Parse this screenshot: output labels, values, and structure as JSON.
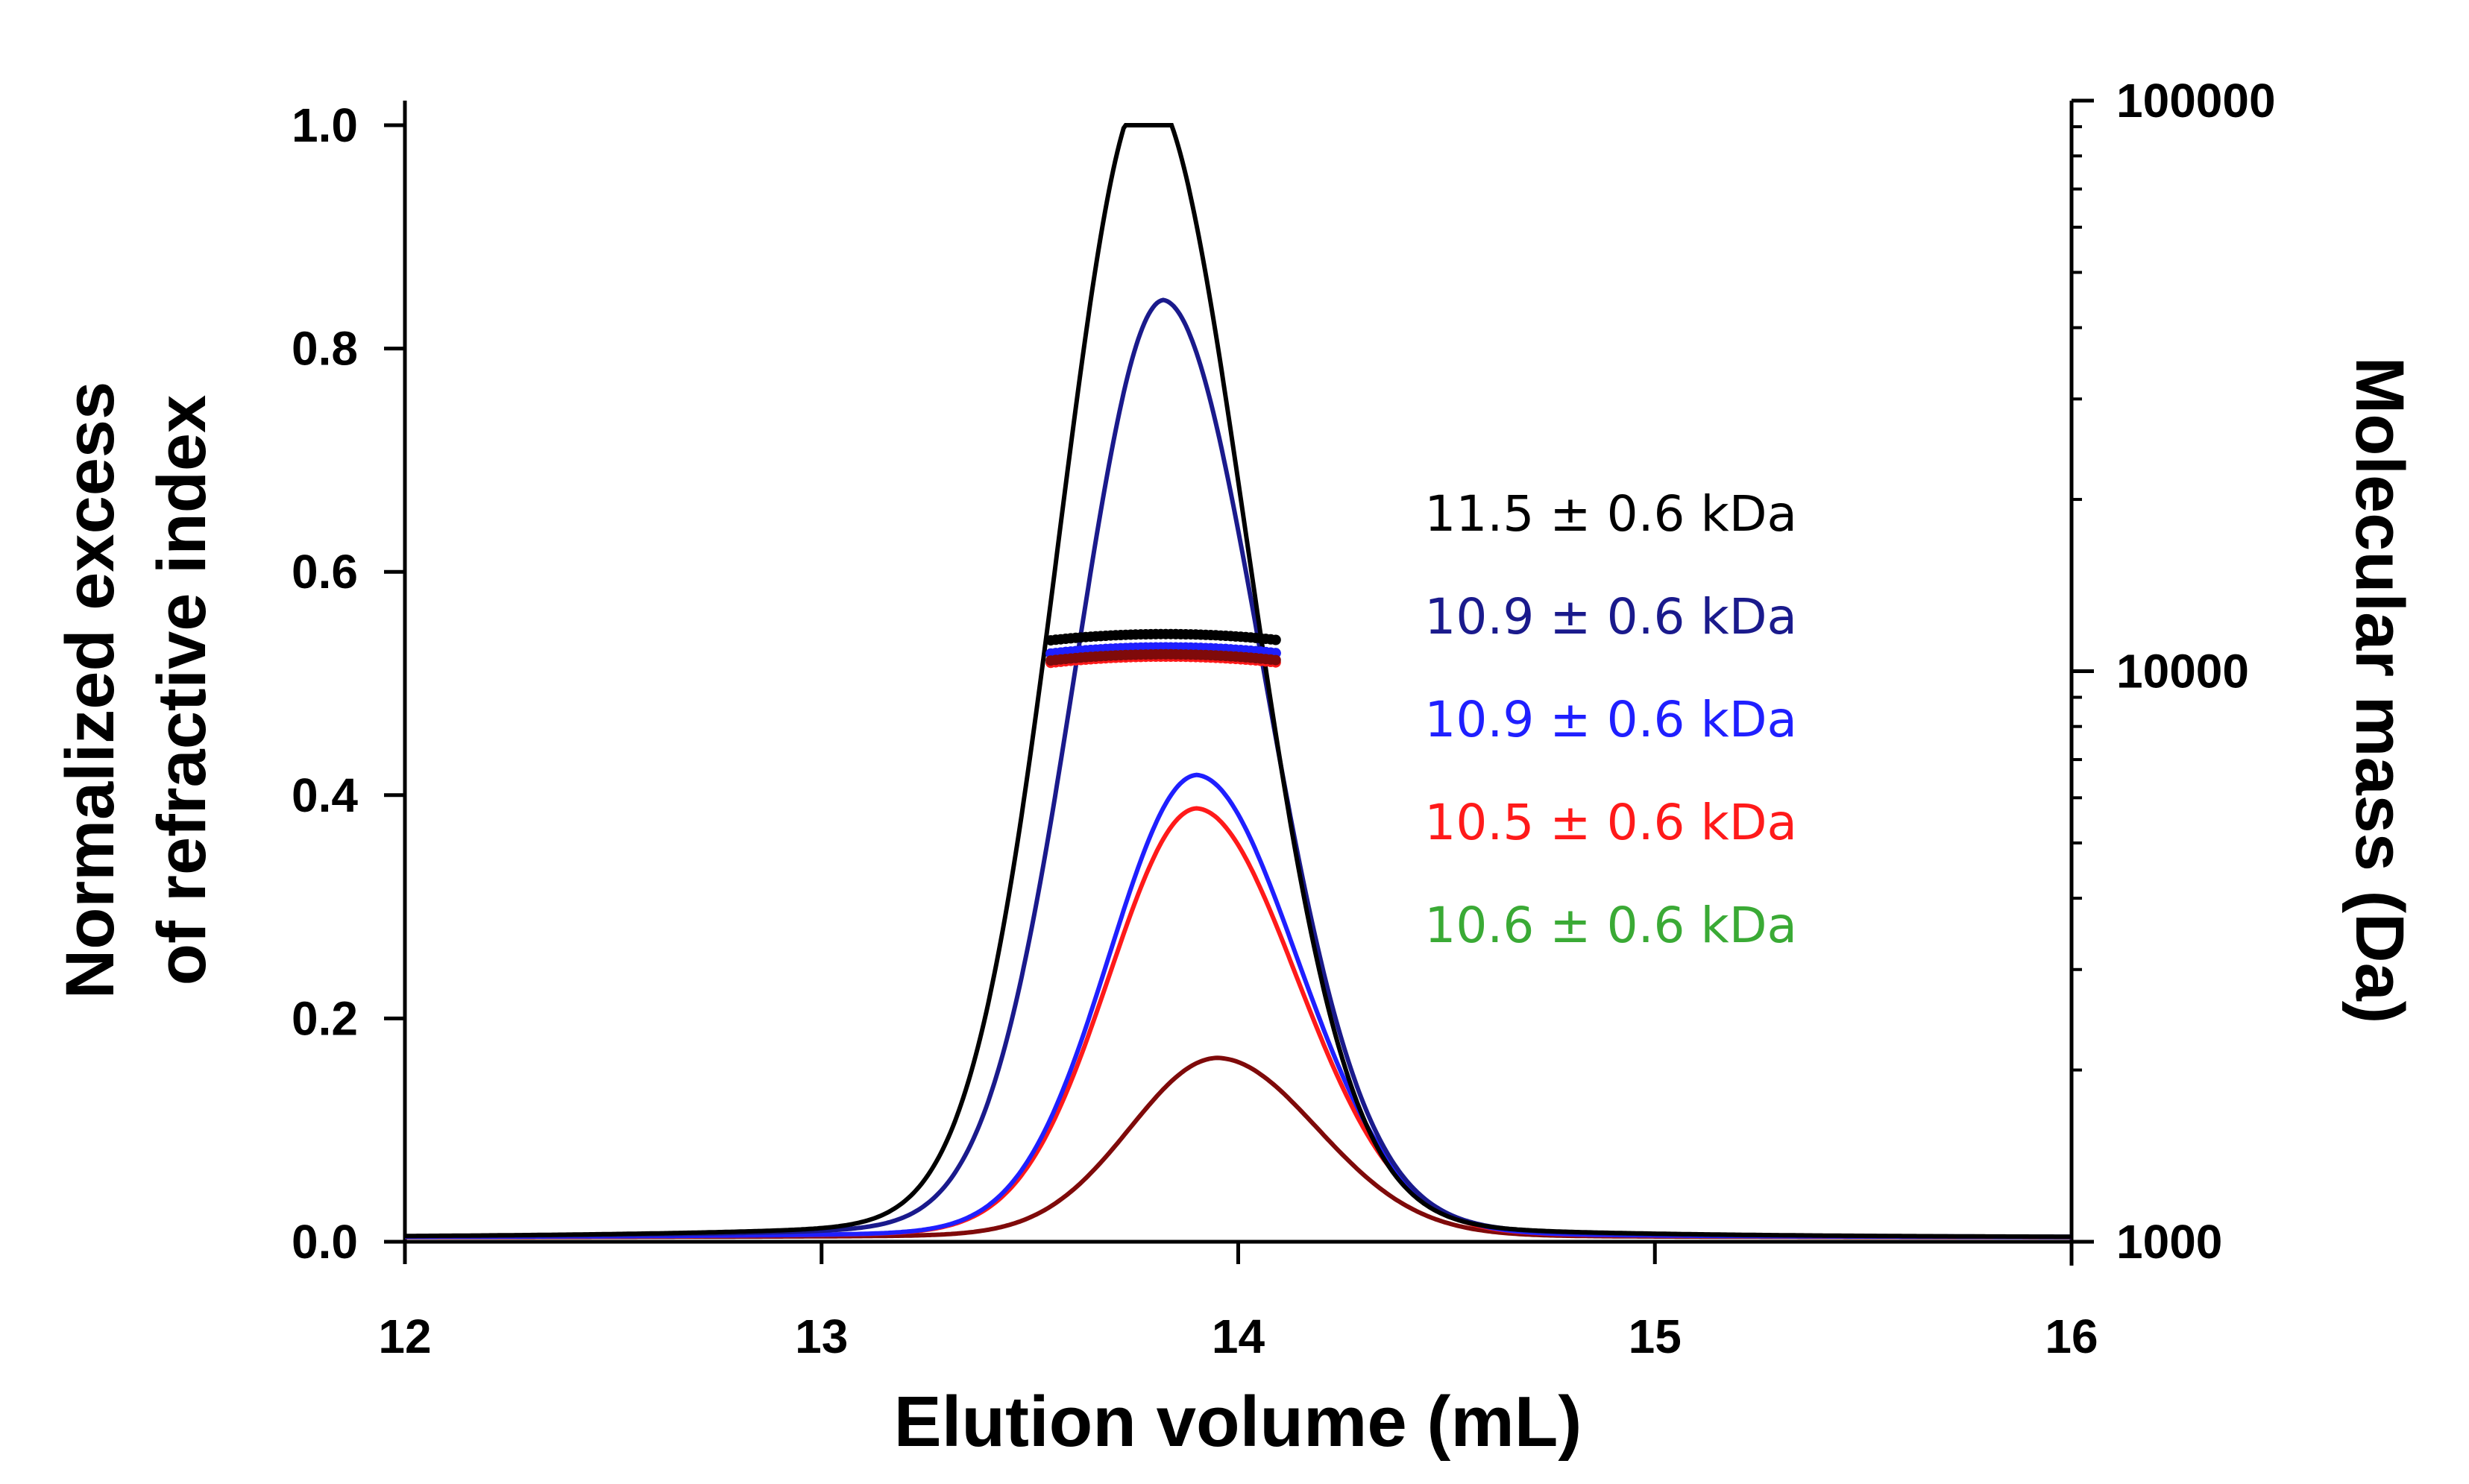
{
  "chart_data": {
    "type": "line",
    "xlabel": "Elution volume (mL)",
    "ylabel_lines": [
      "Normalized excess",
      "of refractive index"
    ],
    "y2label": "Molecular mass (Da)",
    "xlim": [
      12,
      16
    ],
    "ylim": [
      0,
      1.0
    ],
    "y2lim": [
      1000,
      100000
    ],
    "y2scale": "log",
    "xticks": [
      "12",
      "13",
      "14",
      "15",
      "16"
    ],
    "yticks": [
      "0.0",
      "0.2",
      "0.4",
      "0.6",
      "0.8",
      "1.0"
    ],
    "y2ticks": [
      "1000",
      "10000",
      "100000"
    ],
    "series": [
      {
        "name": "black",
        "color": "#000000",
        "peak_x": 13.78,
        "peak_y": 1.0,
        "mass_da": 11500
      },
      {
        "name": "dark blue",
        "color": "#1a1a8c",
        "peak_x": 13.82,
        "peak_y": 0.815,
        "mass_da": 10900
      },
      {
        "name": "blue",
        "color": "#1f1fff",
        "peak_x": 13.9,
        "peak_y": 0.402,
        "mass_da": 10900
      },
      {
        "name": "red",
        "color": "#ff1a1a",
        "peak_x": 13.9,
        "peak_y": 0.373,
        "mass_da": 10500
      },
      {
        "name": "dark red",
        "color": "#7f0a0a",
        "peak_x": 13.95,
        "peak_y": 0.156,
        "mass_da": 10600
      }
    ],
    "annotations": [
      {
        "text": "11.5 ± 0.6 kDa",
        "color": "#000000"
      },
      {
        "text": "10.9 ± 0.6 kDa",
        "color": "#1a1a8c"
      },
      {
        "text": "10.9 ± 0.6 kDa",
        "color": "#1f1fff"
      },
      {
        "text": "10.5 ± 0.6 kDa",
        "color": "#ff1a1a"
      },
      {
        "text": "10.6 ± 0.6 kDa",
        "color": "#3aaa35"
      }
    ],
    "mass_points_range": [
      13.55,
      14.1
    ]
  }
}
